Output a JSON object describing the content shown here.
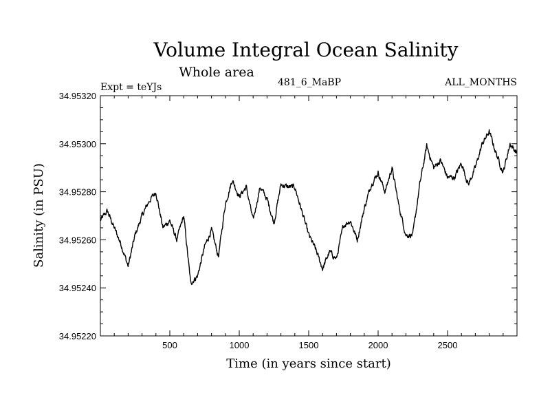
{
  "chart_data": {
    "type": "line",
    "title": "Volume Integral Ocean Salinity",
    "subtitle": "Whole area",
    "header_left": "Expt = teYJs",
    "header_center": "481_6_MaBP",
    "header_right": "ALL_MONTHS",
    "xlabel": "Time (in years since start)",
    "ylabel": "Salinity (in PSU)",
    "xlim": [
      0,
      3000
    ],
    "ylim": [
      34.9522,
      34.9532
    ],
    "x_ticks": [
      500,
      1000,
      1500,
      2000,
      2500
    ],
    "x_tick_labels": [
      "500",
      "1000",
      "1500",
      "2000",
      "2500"
    ],
    "y_ticks": [
      34.9522,
      34.9524,
      34.9526,
      34.9528,
      34.953,
      34.9532
    ],
    "y_tick_labels": [
      "34.95220",
      "34.95240",
      "34.95260",
      "34.95280",
      "34.95300",
      "34.95320"
    ],
    "grid": false,
    "series": [
      {
        "name": "Salinity",
        "color": "#000000",
        "x": [
          0,
          50,
          100,
          150,
          200,
          250,
          300,
          350,
          400,
          450,
          500,
          550,
          600,
          650,
          700,
          750,
          800,
          850,
          900,
          950,
          1000,
          1050,
          1100,
          1150,
          1200,
          1250,
          1300,
          1350,
          1400,
          1450,
          1500,
          1550,
          1600,
          1650,
          1700,
          1750,
          1800,
          1850,
          1900,
          1950,
          2000,
          2050,
          2100,
          2150,
          2200,
          2250,
          2300,
          2350,
          2400,
          2450,
          2500,
          2550,
          2600,
          2650,
          2700,
          2750,
          2800,
          2850,
          2900,
          2950,
          3000
        ],
        "values": [
          34.95268,
          34.95272,
          34.95265,
          34.95258,
          34.95249,
          34.95262,
          34.9527,
          34.95276,
          34.9528,
          34.95265,
          34.95268,
          34.9526,
          34.9527,
          34.95242,
          34.95245,
          34.95257,
          34.95264,
          34.95253,
          34.95275,
          34.95285,
          34.95278,
          34.95282,
          34.95268,
          34.95282,
          34.95277,
          34.95267,
          34.95283,
          34.95282,
          34.95282,
          34.95272,
          34.95262,
          34.95256,
          34.95248,
          34.95255,
          34.95252,
          34.95266,
          34.95268,
          34.9526,
          34.95273,
          34.95283,
          34.95288,
          34.9528,
          34.9529,
          34.95274,
          34.95262,
          34.95262,
          34.95283,
          34.95299,
          34.9529,
          34.95293,
          34.95286,
          34.95286,
          34.95292,
          34.95283,
          34.9529,
          34.953,
          34.95305,
          34.95296,
          34.95288,
          34.953,
          34.95296
        ]
      }
    ]
  }
}
